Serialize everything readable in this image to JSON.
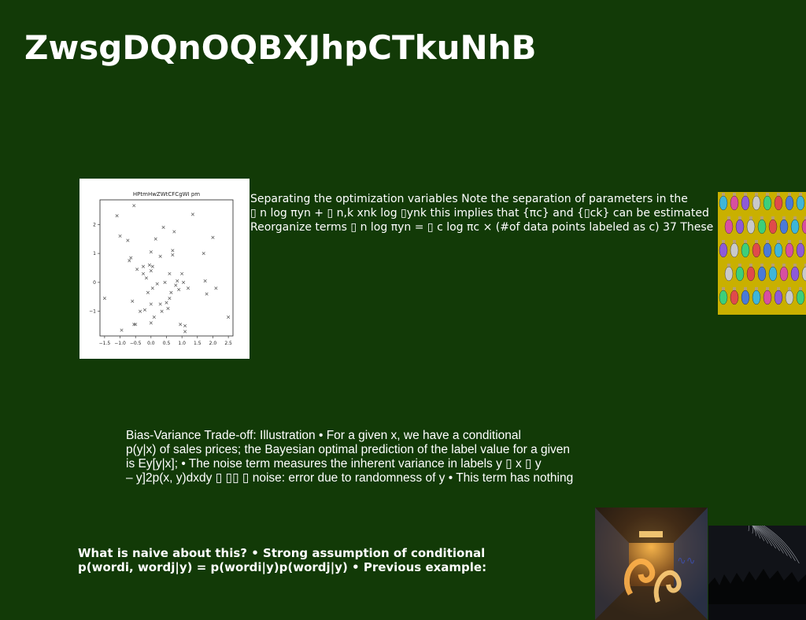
{
  "slide": {
    "title": "ZwsgDQnOQBXJhpCTkuNhB",
    "background": "#123a07",
    "paragraphs": [
      "Separating the optimization variables Note the separation of parameters in the\n▯ n log πyn + ▯ n,k xnk log ▯ynk this implies that {πc} and {▯ck} can be estimated\nReorganize terms ▯ n log πyn = ▯ c log πc × (#of data points labeled as c) 37 These",
      "Bias-Variance Trade-off: Illustration • For a given x, we have a conditional\np(y|x) of sales prices; the Bayesian optimal prediction of the label value for a given\nis Ey[y|x]; • The noise term measures the inherent variance in labels y ▯ x ▯ y\n– y]2p(x, y)dxdy ▯ ▯▯ ▯ noise: error due to randomness of y • This term has nothing",
      "What is naive about this? • Strong assumption of conditional\np(wordi, wordj|y) = p(wordi|y)p(wordj|y) • Previous example:"
    ]
  },
  "images": {
    "ornaments": "christmas-ornaments-photo",
    "tunnel": "graffiti-tunnel-light-painting-photo",
    "night": "star-trails-night-lake-photo"
  },
  "chart_data": {
    "type": "scatter",
    "title": "HPtmHwZWtCFCgWI pm",
    "marker": "x",
    "color": "#555555",
    "xlim": [
      -1.65,
      2.65
    ],
    "ylim": [
      -1.85,
      2.85
    ],
    "xticks": [
      -1.5,
      -1.0,
      -0.5,
      0.0,
      0.5,
      1.0,
      1.5,
      2.0,
      2.5
    ],
    "xtick_labels": [
      "−1.5",
      "−1.0",
      "−0.5",
      "0.0",
      "0.5",
      "1.0",
      "1.5",
      "2.0",
      "2.5"
    ],
    "yticks": [
      -1,
      0,
      1,
      2
    ],
    "ytick_labels": [
      "−1",
      "0",
      "1",
      "2"
    ],
    "points": [
      [
        -1.5,
        -0.55
      ],
      [
        -1.1,
        2.3
      ],
      [
        -1.0,
        1.6
      ],
      [
        -0.95,
        -1.65
      ],
      [
        -0.75,
        1.45
      ],
      [
        -0.7,
        0.75
      ],
      [
        -0.65,
        0.85
      ],
      [
        -0.6,
        -0.65
      ],
      [
        -0.55,
        2.65
      ],
      [
        -0.55,
        -1.45
      ],
      [
        -0.5,
        -1.45
      ],
      [
        -0.45,
        0.45
      ],
      [
        -0.35,
        -1.0
      ],
      [
        -0.25,
        0.55
      ],
      [
        -0.25,
        0.3
      ],
      [
        -0.2,
        -0.95
      ],
      [
        -0.15,
        0.15
      ],
      [
        -0.1,
        -0.35
      ],
      [
        -0.05,
        0.6
      ],
      [
        0.0,
        1.05
      ],
      [
        0.0,
        0.4
      ],
      [
        0.0,
        -0.75
      ],
      [
        0.0,
        -1.4
      ],
      [
        0.05,
        -0.2
      ],
      [
        0.05,
        0.55
      ],
      [
        0.1,
        -1.2
      ],
      [
        0.15,
        1.5
      ],
      [
        0.2,
        -0.05
      ],
      [
        0.3,
        0.9
      ],
      [
        0.3,
        -0.75
      ],
      [
        0.35,
        -1.0
      ],
      [
        0.4,
        1.9
      ],
      [
        0.45,
        0.0
      ],
      [
        0.5,
        -0.7
      ],
      [
        0.55,
        -0.9
      ],
      [
        0.6,
        -0.55
      ],
      [
        0.6,
        0.3
      ],
      [
        0.65,
        -0.35
      ],
      [
        0.7,
        1.1
      ],
      [
        0.7,
        0.95
      ],
      [
        0.75,
        1.75
      ],
      [
        0.8,
        -0.1
      ],
      [
        0.85,
        0.05
      ],
      [
        0.9,
        -0.25
      ],
      [
        0.95,
        -1.45
      ],
      [
        1.0,
        0.3
      ],
      [
        1.05,
        0.0
      ],
      [
        1.1,
        -1.5
      ],
      [
        1.1,
        -1.7
      ],
      [
        1.2,
        -0.2
      ],
      [
        1.35,
        2.35
      ],
      [
        1.7,
        1.0
      ],
      [
        1.75,
        0.05
      ],
      [
        1.8,
        -0.4
      ],
      [
        2.0,
        1.55
      ],
      [
        2.1,
        -0.2
      ],
      [
        2.5,
        -1.2
      ]
    ]
  }
}
